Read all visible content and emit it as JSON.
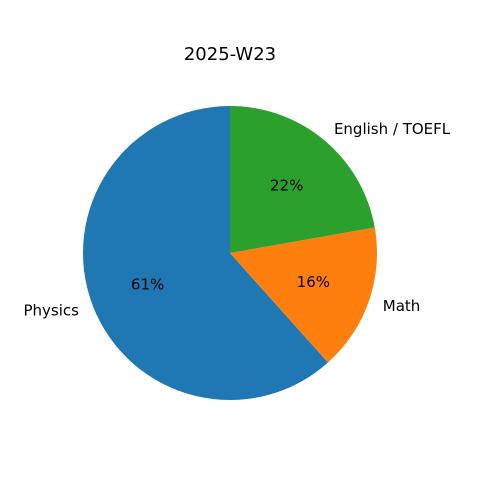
{
  "chart_data": {
    "type": "pie",
    "title": "2025-W23",
    "slices": [
      {
        "label": "Physics",
        "value": 61,
        "pct_label": "61%",
        "color": "#1f77b4"
      },
      {
        "label": "Math",
        "value": 16,
        "pct_label": "16%",
        "color": "#ff7f0e"
      },
      {
        "label": "English / TOEFL",
        "value": 22,
        "pct_label": "22%",
        "color": "#2ca02c"
      }
    ],
    "start_angle": "top",
    "direction": "counterclockwise",
    "legend": "none"
  }
}
